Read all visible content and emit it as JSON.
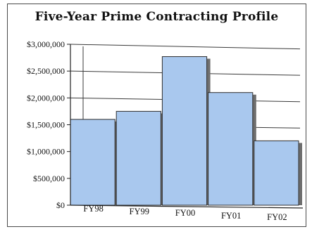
{
  "chart_data": {
    "type": "bar",
    "title": "Five-Year Prime Contracting Profile",
    "categories": [
      "FY98",
      "FY99",
      "FY00",
      "FY01",
      "FY02"
    ],
    "values": [
      1600000,
      1750000,
      2770000,
      2100000,
      1200000
    ],
    "ylim": [
      0,
      3000000
    ],
    "yticks": [
      0,
      500000,
      1000000,
      1500000,
      2000000,
      2500000,
      3000000
    ],
    "ytick_labels": [
      "$0",
      "$500,000",
      "$1,000,000",
      "$1,500,000",
      "$2,000,000",
      "$2,500,000",
      "$3,000,000"
    ],
    "grid": true,
    "bar_color": "#a9c8ee",
    "bar_shadow_color": "#6e6e6e"
  }
}
